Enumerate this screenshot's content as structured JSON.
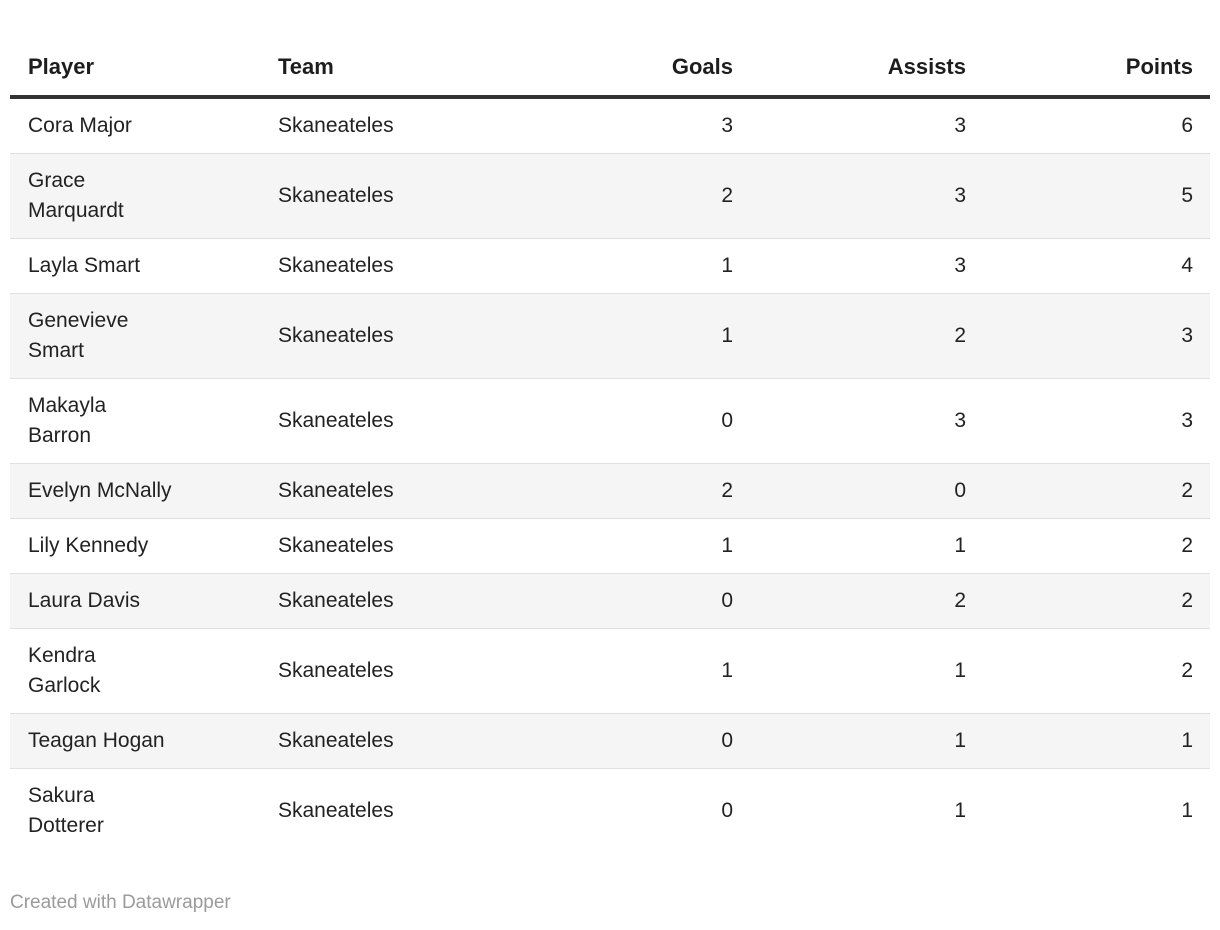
{
  "table": {
    "columns": [
      {
        "key": "player",
        "label": "Player",
        "align": "left"
      },
      {
        "key": "team",
        "label": "Team",
        "align": "left"
      },
      {
        "key": "goals",
        "label": "Goals",
        "align": "right"
      },
      {
        "key": "assists",
        "label": "Assists",
        "align": "right"
      },
      {
        "key": "points",
        "label": "Points",
        "align": "right"
      }
    ],
    "rows": [
      {
        "player": "Cora Major",
        "team": "Skaneateles",
        "goals": "3",
        "assists": "3",
        "points": "6"
      },
      {
        "player": "Grace\nMarquardt",
        "team": "Skaneateles",
        "goals": "2",
        "assists": "3",
        "points": "5"
      },
      {
        "player": "Layla Smart",
        "team": "Skaneateles",
        "goals": "1",
        "assists": "3",
        "points": "4"
      },
      {
        "player": "Genevieve\nSmart",
        "team": "Skaneateles",
        "goals": "1",
        "assists": "2",
        "points": "3"
      },
      {
        "player": "Makayla\nBarron",
        "team": "Skaneateles",
        "goals": "0",
        "assists": "3",
        "points": "3"
      },
      {
        "player": "Evelyn McNally",
        "team": "Skaneateles",
        "goals": "2",
        "assists": "0",
        "points": "2"
      },
      {
        "player": "Lily Kennedy",
        "team": "Skaneateles",
        "goals": "1",
        "assists": "1",
        "points": "2"
      },
      {
        "player": "Laura Davis",
        "team": "Skaneateles",
        "goals": "0",
        "assists": "2",
        "points": "2"
      },
      {
        "player": "Kendra\nGarlock",
        "team": "Skaneateles",
        "goals": "1",
        "assists": "1",
        "points": "2"
      },
      {
        "player": "Teagan Hogan",
        "team": "Skaneateles",
        "goals": "0",
        "assists": "1",
        "points": "1"
      },
      {
        "player": "Sakura\nDotterer",
        "team": "Skaneateles",
        "goals": "0",
        "assists": "1",
        "points": "1"
      }
    ]
  },
  "footer": {
    "attribution": "Created with Datawrapper"
  },
  "colors": {
    "header_rule": "#333333",
    "row_stripe": "#f5f5f5",
    "row_separator": "#e0e0e0",
    "body_text": "#222222",
    "attribution_text": "#9b9b9b",
    "background": "#ffffff"
  },
  "chart_data": {
    "type": "table",
    "title": "",
    "columns": [
      "Player",
      "Team",
      "Goals",
      "Assists",
      "Points"
    ],
    "rows": [
      [
        "Cora Major",
        "Skaneateles",
        3,
        3,
        6
      ],
      [
        "Grace Marquardt",
        "Skaneateles",
        2,
        3,
        5
      ],
      [
        "Layla Smart",
        "Skaneateles",
        1,
        3,
        4
      ],
      [
        "Genevieve Smart",
        "Skaneateles",
        1,
        2,
        3
      ],
      [
        "Makayla Barron",
        "Skaneateles",
        0,
        3,
        3
      ],
      [
        "Evelyn McNally",
        "Skaneateles",
        2,
        0,
        2
      ],
      [
        "Lily Kennedy",
        "Skaneateles",
        1,
        1,
        2
      ],
      [
        "Laura Davis",
        "Skaneateles",
        0,
        2,
        2
      ],
      [
        "Kendra Garlock",
        "Skaneateles",
        1,
        1,
        2
      ],
      [
        "Teagan Hogan",
        "Skaneateles",
        0,
        1,
        1
      ],
      [
        "Sakura Dotterer",
        "Skaneateles",
        0,
        1,
        1
      ]
    ],
    "layout_hints": {
      "striped_rows": true,
      "numeric_columns_right_aligned": true,
      "attribution": "Created with Datawrapper"
    }
  }
}
